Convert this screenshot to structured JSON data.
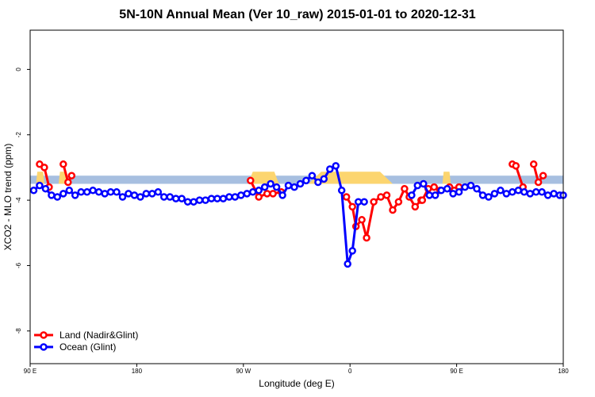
{
  "chart_data": {
    "type": "line",
    "title": "5N-10N Annual Mean (Ver 10_raw)   2015-01-01 to 2020-12-31",
    "xlabel": "Longitude (deg E)",
    "ylabel": "XCO2 - MLO trend (ppm)",
    "xlim": [
      90,
      450
    ],
    "ylim": [
      -9,
      1.2
    ],
    "x_ticks": [
      {
        "value": 90,
        "label": "90 E"
      },
      {
        "value": 180,
        "label": "180"
      },
      {
        "value": 270,
        "label": "90 W"
      },
      {
        "value": 360,
        "label": "0"
      },
      {
        "value": 450,
        "label": "90 E"
      },
      {
        "value": 540,
        "label": "180"
      }
    ],
    "y_ticks": [
      {
        "value": 0,
        "label": "0"
      },
      {
        "value": -2,
        "label": "-2"
      },
      {
        "value": -4,
        "label": "-4"
      },
      {
        "value": -6,
        "label": "-6"
      },
      {
        "value": -8,
        "label": "-8"
      }
    ],
    "xlim_draw": [
      90,
      540
    ],
    "band": {
      "y_min": -3.5,
      "y_max": -3.25,
      "color": "#a7bfe0"
    },
    "highlight_color": "#fcd56f",
    "highlights": [
      [
        95,
        102
      ],
      [
        114,
        122
      ],
      [
        274,
        300
      ],
      [
        325,
        396
      ],
      [
        438,
        445
      ]
    ],
    "legend": {
      "position": "bottom-left",
      "entries": [
        "Land (Nadir&Glint)",
        "Ocean (Glint)"
      ]
    },
    "series": [
      {
        "name": "Land (Nadir&Glint)",
        "color": "#ff0000",
        "segments": [
          {
            "x": [
              98,
              102,
              106
            ],
            "y": [
              -2.9,
              -3.0,
              -3.6
            ]
          },
          {
            "x": [
              118,
              122,
              125
            ],
            "y": [
              -2.9,
              -3.45,
              -3.25
            ]
          },
          {
            "x": [
              276,
              283,
              290,
              295,
              302
            ],
            "y": [
              -3.4,
              -3.9,
              -3.8,
              -3.8,
              -3.75
            ]
          },
          {
            "x": [
              357,
              362,
              365,
              370,
              374,
              380,
              386,
              391,
              396,
              401,
              406,
              410,
              415,
              420,
              421,
              426,
              431,
              436
            ],
            "y": [
              -3.9,
              -4.2,
              -4.8,
              -4.6,
              -5.15,
              -4.05,
              -3.9,
              -3.85,
              -4.3,
              -4.05,
              -3.65,
              -3.9,
              -4.2,
              -4.0,
              -4.0,
              -3.65,
              -3.6,
              -3.7
            ]
          },
          {
            "x": [
              444,
              448,
              452
            ],
            "y": [
              -3.6,
              -3.7,
              -3.6
            ]
          },
          {
            "x": [
              497,
              500,
              506
            ],
            "y": [
              -2.9,
              -2.95,
              -3.6
            ]
          },
          {
            "x": [
              515,
              519,
              523
            ],
            "y": [
              -2.9,
              -3.45,
              -3.25
            ]
          }
        ]
      },
      {
        "name": "Ocean (Glint)",
        "color": "#0000ff",
        "segments": [
          {
            "x": [
              93,
              98,
              103,
              108,
              113,
              118,
              123,
              128,
              133,
              138,
              143,
              148,
              153,
              158,
              163,
              168,
              173,
              178,
              183,
              188,
              193,
              198,
              203,
              208,
              213,
              218,
              223,
              228,
              233,
              238,
              243,
              248,
              253,
              258,
              263,
              268,
              273,
              278,
              283,
              288,
              293,
              298,
              303,
              308,
              313,
              318,
              323,
              328,
              333,
              338,
              343,
              348,
              353,
              358,
              362,
              367,
              372
            ],
            "y": [
              -3.7,
              -3.55,
              -3.65,
              -3.85,
              -3.9,
              -3.8,
              -3.7,
              -3.85,
              -3.75,
              -3.75,
              -3.7,
              -3.75,
              -3.8,
              -3.75,
              -3.75,
              -3.9,
              -3.8,
              -3.85,
              -3.9,
              -3.8,
              -3.8,
              -3.75,
              -3.9,
              -3.9,
              -3.95,
              -3.95,
              -4.05,
              -4.05,
              -4.0,
              -4.0,
              -3.95,
              -3.95,
              -3.95,
              -3.9,
              -3.9,
              -3.85,
              -3.8,
              -3.75,
              -3.7,
              -3.6,
              -3.5,
              -3.6,
              -3.85,
              -3.55,
              -3.6,
              -3.5,
              -3.4,
              -3.25,
              -3.45,
              -3.35,
              -3.05,
              -2.95,
              -3.7,
              -5.95,
              -5.55,
              -4.05,
              -4.05
            ]
          },
          {
            "x": [
              412,
              417,
              422,
              427,
              432,
              437,
              442,
              447,
              452,
              457,
              462,
              467,
              472,
              477,
              482,
              487,
              492,
              497,
              502,
              507,
              512,
              517,
              522,
              527,
              532,
              537,
              540
            ],
            "y": [
              -3.85,
              -3.55,
              -3.5,
              -3.85,
              -3.85,
              -3.7,
              -3.65,
              -3.8,
              -3.75,
              -3.6,
              -3.55,
              -3.65,
              -3.85,
              -3.9,
              -3.8,
              -3.7,
              -3.8,
              -3.75,
              -3.7,
              -3.75,
              -3.8,
              -3.75,
              -3.75,
              -3.85,
              -3.8,
              -3.85,
              -3.85
            ]
          }
        ]
      }
    ]
  }
}
